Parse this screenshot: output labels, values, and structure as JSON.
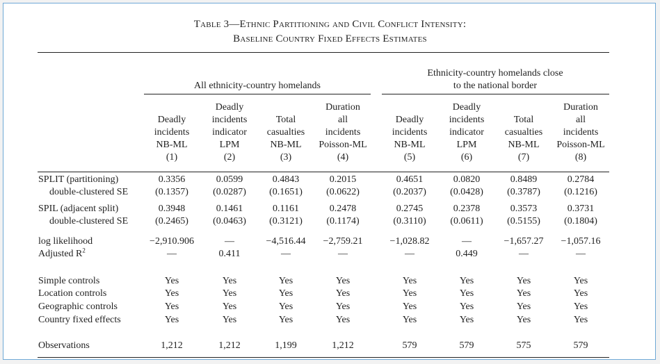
{
  "title_line1": "Table 3—Ethnic Partitioning and Civil Conflict Intensity:",
  "title_line2": "Baseline Country Fixed Effects Estimates",
  "group_left": "All ethnicity-country homelands",
  "group_right_line1": "Ethnicity-country homelands close",
  "group_right_line2": "to the national border",
  "columns": [
    {
      "l1": "",
      "l2": "Deadly",
      "l3": "incidents",
      "l4": "NB-ML",
      "num": "(1)"
    },
    {
      "l1": "Deadly",
      "l2": "incidents",
      "l3": "indicator",
      "l4": "LPM",
      "num": "(2)"
    },
    {
      "l1": "",
      "l2": "Total",
      "l3": "casualties",
      "l4": "NB-ML",
      "num": "(3)"
    },
    {
      "l1": "Duration",
      "l2": "all",
      "l3": "incidents",
      "l4": "Poisson-ML",
      "num": "(4)"
    },
    {
      "l1": "",
      "l2": "Deadly",
      "l3": "incidents",
      "l4": "NB-ML",
      "num": "(5)"
    },
    {
      "l1": "Deadly",
      "l2": "incidents",
      "l3": "indicator",
      "l4": "LPM",
      "num": "(6)"
    },
    {
      "l1": "",
      "l2": "Total",
      "l3": "casualties",
      "l4": "NB-ML",
      "num": "(7)"
    },
    {
      "l1": "Duration",
      "l2": "all",
      "l3": "incidents",
      "l4": "Poisson-ML",
      "num": "(8)"
    }
  ],
  "rows": [
    {
      "label": "SPLIT (partitioning)",
      "values": [
        "0.3356",
        "0.0599",
        "0.4843",
        "0.2015",
        "0.4651",
        "0.0820",
        "0.8489",
        "0.2784"
      ]
    },
    {
      "label": "double-clustered SE",
      "values": [
        "(0.1357)",
        "(0.0287)",
        "(0.1651)",
        "(0.0622)",
        "(0.2037)",
        "(0.0428)",
        "(0.3787)",
        "(0.1216)"
      ]
    },
    {
      "label": "SPIL (adjacent split)",
      "values": [
        "0.3948",
        "0.1461",
        "0.1161",
        "0.2478",
        "0.2745",
        "0.2378",
        "0.3573",
        "0.3731"
      ]
    },
    {
      "label": "double-clustered SE",
      "values": [
        "(0.2465)",
        "(0.0463)",
        "(0.3121)",
        "(0.1174)",
        "(0.3110)",
        "(0.0611)",
        "(0.5155)",
        "(0.1804)"
      ]
    },
    {
      "label": "log likelihood",
      "values": [
        "−2,910.906",
        "—",
        "−4,516.44",
        "−2,759.21",
        "−1,028.82",
        "—",
        "−1,657.27",
        "−1,057.16"
      ]
    },
    {
      "label": "Adjusted R",
      "sup": "2",
      "values": [
        "—",
        "0.411",
        "—",
        "—",
        "—",
        "0.449",
        "—",
        "—"
      ]
    },
    {
      "label": "Simple controls",
      "values": [
        "Yes",
        "Yes",
        "Yes",
        "Yes",
        "Yes",
        "Yes",
        "Yes",
        "Yes"
      ]
    },
    {
      "label": "Location controls",
      "values": [
        "Yes",
        "Yes",
        "Yes",
        "Yes",
        "Yes",
        "Yes",
        "Yes",
        "Yes"
      ]
    },
    {
      "label": "Geographic controls",
      "values": [
        "Yes",
        "Yes",
        "Yes",
        "Yes",
        "Yes",
        "Yes",
        "Yes",
        "Yes"
      ]
    },
    {
      "label": "Country fixed effects",
      "values": [
        "Yes",
        "Yes",
        "Yes",
        "Yes",
        "Yes",
        "Yes",
        "Yes",
        "Yes"
      ]
    },
    {
      "label": "Observations",
      "values": [
        "1,212",
        "1,212",
        "1,199",
        "1,212",
        "579",
        "579",
        "575",
        "579"
      ]
    }
  ]
}
